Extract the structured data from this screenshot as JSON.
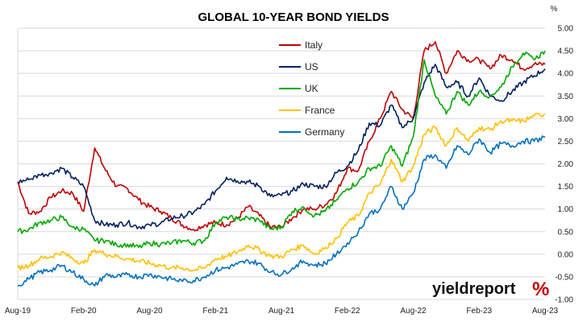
{
  "chart_data": {
    "type": "line",
    "title": "GLOBAL 10-YEAR BOND YIELDS",
    "unit_label": "%",
    "ylim": [
      -1.0,
      5.0
    ],
    "y_ticks": [
      "5.00",
      "4.50",
      "4.00",
      "3.50",
      "3.00",
      "2.50",
      "2.00",
      "1.50",
      "1.00",
      "0.50",
      "0.00",
      "-0.50",
      "-1.00"
    ],
    "x_ticks": [
      "Aug-19",
      "Feb-20",
      "Aug-20",
      "Feb-21",
      "Aug-21",
      "Feb-22",
      "Aug-22",
      "Feb-23",
      "Aug-23"
    ],
    "grid": "horizontal",
    "legend_position": "top-center",
    "series": [
      {
        "name": "Italy",
        "color": "#c00000",
        "x": [
          "2019-08",
          "2019-09",
          "2019-10",
          "2019-11",
          "2019-12",
          "2020-01",
          "2020-02",
          "2020-03",
          "2020-04",
          "2020-05",
          "2020-06",
          "2020-07",
          "2020-08",
          "2020-09",
          "2020-10",
          "2020-11",
          "2020-12",
          "2021-01",
          "2021-02",
          "2021-03",
          "2021-04",
          "2021-05",
          "2021-06",
          "2021-07",
          "2021-08",
          "2021-09",
          "2021-10",
          "2021-11",
          "2021-12",
          "2022-01",
          "2022-02",
          "2022-03",
          "2022-04",
          "2022-05",
          "2022-06",
          "2022-07",
          "2022-08",
          "2022-09",
          "2022-10",
          "2022-11",
          "2022-12",
          "2023-01",
          "2023-02",
          "2023-03",
          "2023-04",
          "2023-05",
          "2023-06",
          "2023-07",
          "2023-08"
        ],
        "values": [
          1.6,
          0.9,
          0.95,
          1.25,
          1.4,
          1.35,
          0.95,
          2.35,
          1.85,
          1.5,
          1.45,
          1.2,
          1.05,
          0.95,
          0.8,
          0.65,
          0.55,
          0.65,
          0.7,
          0.65,
          0.8,
          1.05,
          0.85,
          0.6,
          0.6,
          0.8,
          1.0,
          1.0,
          1.1,
          1.35,
          1.9,
          1.85,
          2.5,
          3.0,
          3.6,
          3.2,
          3.0,
          4.5,
          4.7,
          4.0,
          4.5,
          4.3,
          4.3,
          4.1,
          4.4,
          4.3,
          4.1,
          4.2,
          4.2
        ]
      },
      {
        "name": "US",
        "color": "#002060",
        "x": [
          "2019-08",
          "2019-09",
          "2019-10",
          "2019-11",
          "2019-12",
          "2020-01",
          "2020-02",
          "2020-03",
          "2020-04",
          "2020-05",
          "2020-06",
          "2020-07",
          "2020-08",
          "2020-09",
          "2020-10",
          "2020-11",
          "2020-12",
          "2021-01",
          "2021-02",
          "2021-03",
          "2021-04",
          "2021-05",
          "2021-06",
          "2021-07",
          "2021-08",
          "2021-09",
          "2021-10",
          "2021-11",
          "2021-12",
          "2022-01",
          "2022-02",
          "2022-03",
          "2022-04",
          "2022-05",
          "2022-06",
          "2022-07",
          "2022-08",
          "2022-09",
          "2022-10",
          "2022-11",
          "2022-12",
          "2023-01",
          "2023-02",
          "2023-03",
          "2023-04",
          "2023-05",
          "2023-06",
          "2023-07",
          "2023-08"
        ],
        "values": [
          1.6,
          1.65,
          1.75,
          1.8,
          1.9,
          1.7,
          1.5,
          0.75,
          0.65,
          0.65,
          0.7,
          0.6,
          0.65,
          0.68,
          0.8,
          0.85,
          0.92,
          1.1,
          1.4,
          1.7,
          1.62,
          1.6,
          1.5,
          1.28,
          1.3,
          1.4,
          1.55,
          1.5,
          1.5,
          1.8,
          1.95,
          2.3,
          2.9,
          2.85,
          3.3,
          2.8,
          3.0,
          3.8,
          4.2,
          3.7,
          3.8,
          3.5,
          3.9,
          3.5,
          3.4,
          3.6,
          3.8,
          3.95,
          4.1
        ]
      },
      {
        "name": "UK",
        "color": "#00a800",
        "x": [
          "2019-08",
          "2019-09",
          "2019-10",
          "2019-11",
          "2019-12",
          "2020-01",
          "2020-02",
          "2020-03",
          "2020-04",
          "2020-05",
          "2020-06",
          "2020-07",
          "2020-08",
          "2020-09",
          "2020-10",
          "2020-11",
          "2020-12",
          "2021-01",
          "2021-02",
          "2021-03",
          "2021-04",
          "2021-05",
          "2021-06",
          "2021-07",
          "2021-08",
          "2021-09",
          "2021-10",
          "2021-11",
          "2021-12",
          "2022-01",
          "2022-02",
          "2022-03",
          "2022-04",
          "2022-05",
          "2022-06",
          "2022-07",
          "2022-08",
          "2022-09",
          "2022-10",
          "2022-11",
          "2022-12",
          "2023-01",
          "2023-02",
          "2023-03",
          "2023-04",
          "2023-05",
          "2023-06",
          "2023-07",
          "2023-08"
        ],
        "values": [
          0.5,
          0.55,
          0.7,
          0.75,
          0.82,
          0.6,
          0.55,
          0.3,
          0.3,
          0.2,
          0.22,
          0.15,
          0.25,
          0.22,
          0.25,
          0.3,
          0.25,
          0.3,
          0.7,
          0.82,
          0.78,
          0.8,
          0.75,
          0.55,
          0.6,
          0.95,
          1.05,
          0.85,
          0.95,
          1.2,
          1.45,
          1.6,
          1.9,
          1.95,
          2.4,
          1.95,
          2.6,
          4.3,
          3.5,
          3.1,
          3.6,
          3.3,
          3.6,
          3.5,
          3.7,
          4.15,
          4.45,
          4.3,
          4.5
        ]
      },
      {
        "name": "France",
        "color": "#ffc000",
        "x": [
          "2019-08",
          "2019-09",
          "2019-10",
          "2019-11",
          "2019-12",
          "2020-01",
          "2020-02",
          "2020-03",
          "2020-04",
          "2020-05",
          "2020-06",
          "2020-07",
          "2020-08",
          "2020-09",
          "2020-10",
          "2020-11",
          "2020-12",
          "2021-01",
          "2021-02",
          "2021-03",
          "2021-04",
          "2021-05",
          "2021-06",
          "2021-07",
          "2021-08",
          "2021-09",
          "2021-10",
          "2021-11",
          "2021-12",
          "2022-01",
          "2022-02",
          "2022-03",
          "2022-04",
          "2022-05",
          "2022-06",
          "2022-07",
          "2022-08",
          "2022-09",
          "2022-10",
          "2022-11",
          "2022-12",
          "2023-01",
          "2023-02",
          "2023-03",
          "2023-04",
          "2023-05",
          "2023-06",
          "2023-07",
          "2023-08"
        ],
        "values": [
          -0.3,
          -0.25,
          -0.1,
          -0.05,
          0.05,
          -0.1,
          -0.2,
          0.1,
          0.0,
          -0.05,
          -0.1,
          -0.15,
          -0.2,
          -0.25,
          -0.3,
          -0.3,
          -0.35,
          -0.3,
          -0.1,
          -0.05,
          0.05,
          0.2,
          0.1,
          -0.05,
          -0.05,
          0.1,
          0.2,
          0.0,
          0.15,
          0.35,
          0.7,
          0.85,
          1.35,
          1.55,
          2.1,
          1.6,
          1.95,
          2.65,
          2.8,
          2.4,
          2.8,
          2.5,
          2.8,
          2.75,
          2.95,
          2.95,
          2.95,
          3.05,
          3.1
        ]
      },
      {
        "name": "Germany",
        "color": "#0070c0",
        "x": [
          "2019-08",
          "2019-09",
          "2019-10",
          "2019-11",
          "2019-12",
          "2020-01",
          "2020-02",
          "2020-03",
          "2020-04",
          "2020-05",
          "2020-06",
          "2020-07",
          "2020-08",
          "2020-09",
          "2020-10",
          "2020-11",
          "2020-12",
          "2021-01",
          "2021-02",
          "2021-03",
          "2021-04",
          "2021-05",
          "2021-06",
          "2021-07",
          "2021-08",
          "2021-09",
          "2021-10",
          "2021-11",
          "2021-12",
          "2022-01",
          "2022-02",
          "2022-03",
          "2022-04",
          "2022-05",
          "2022-06",
          "2022-07",
          "2022-08",
          "2022-09",
          "2022-10",
          "2022-11",
          "2022-12",
          "2023-01",
          "2023-02",
          "2023-03",
          "2023-04",
          "2023-05",
          "2023-06",
          "2023-07",
          "2023-08"
        ],
        "values": [
          -0.7,
          -0.55,
          -0.4,
          -0.35,
          -0.25,
          -0.4,
          -0.55,
          -0.7,
          -0.45,
          -0.5,
          -0.45,
          -0.5,
          -0.45,
          -0.5,
          -0.55,
          -0.6,
          -0.58,
          -0.5,
          -0.35,
          -0.3,
          -0.22,
          -0.15,
          -0.2,
          -0.4,
          -0.45,
          -0.3,
          -0.15,
          -0.25,
          -0.2,
          0.0,
          0.25,
          0.5,
          0.9,
          1.0,
          1.5,
          1.0,
          1.35,
          2.1,
          2.2,
          1.9,
          2.4,
          2.2,
          2.55,
          2.25,
          2.45,
          2.4,
          2.5,
          2.5,
          2.6
        ]
      }
    ]
  },
  "logo": {
    "text": "yieldreport",
    "mark": "%"
  }
}
